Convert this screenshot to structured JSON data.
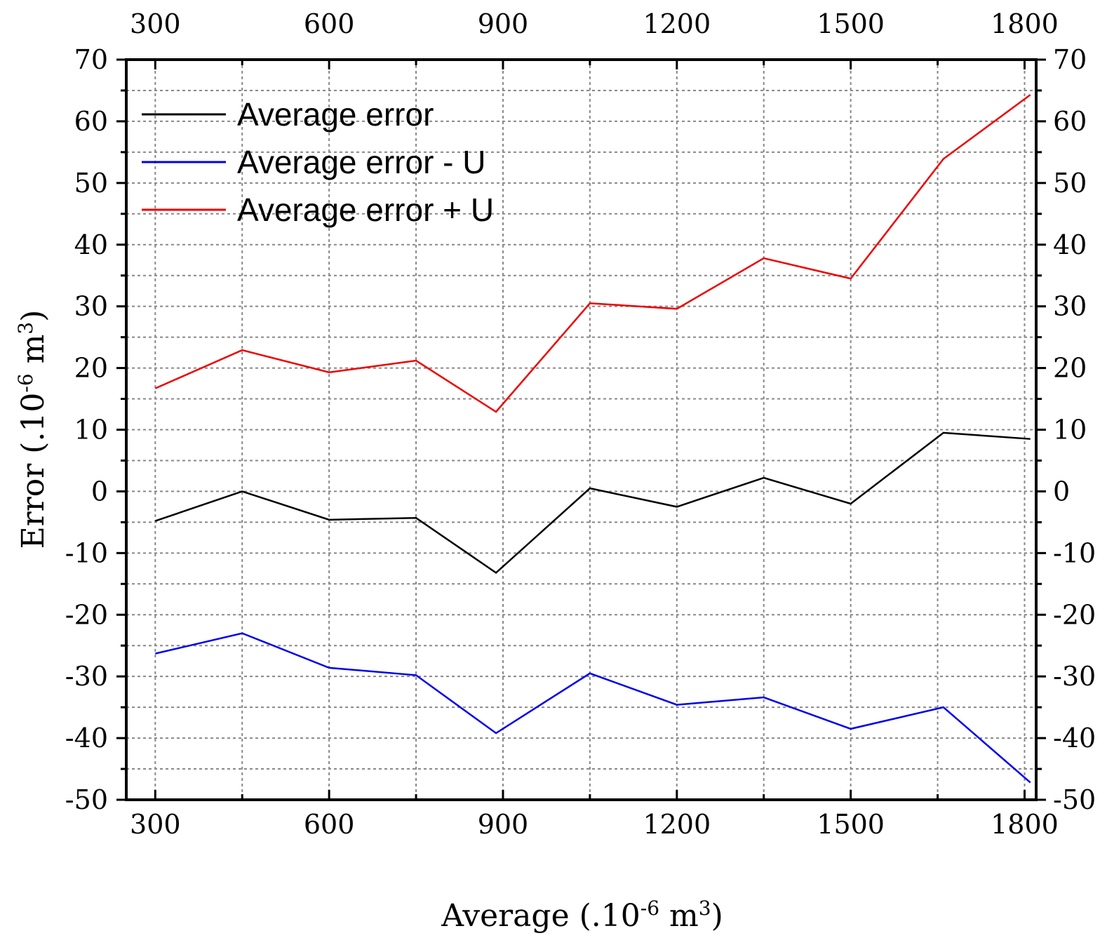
{
  "chart_data": {
    "type": "line",
    "xlabel": "Average (.10-6 m3)",
    "xlabel_parts": {
      "base": "Average (.10",
      "exp1": "-6",
      "mid": " m",
      "exp2": "3",
      "end": ")"
    },
    "ylabel": "Error (.10-6 m3)",
    "ylabel_parts": {
      "base": "Error (.10",
      "exp1": "-6",
      "mid": " m",
      "exp2": "3",
      "end": ")"
    },
    "xlim": [
      250,
      1820
    ],
    "ylim": [
      -50,
      70
    ],
    "x_ticks": [
      300,
      600,
      900,
      1200,
      1500,
      1800
    ],
    "y_ticks": [
      -50,
      -40,
      -30,
      -20,
      -10,
      0,
      10,
      20,
      30,
      40,
      50,
      60,
      70
    ],
    "grid": true,
    "legend_position": "top-left",
    "x": [
      300,
      450,
      600,
      750,
      888,
      1050,
      1200,
      1350,
      1500,
      1660,
      1810
    ],
    "series": [
      {
        "name": "Average error",
        "color": "#000000",
        "values": [
          -4.8,
          0.0,
          -4.6,
          -4.3,
          -13.2,
          0.5,
          -2.5,
          2.2,
          -2.0,
          9.5,
          8.5
        ]
      },
      {
        "name": "Average error - U",
        "color": "#0000ee",
        "values": [
          -26.3,
          -23.0,
          -28.6,
          -29.8,
          -39.2,
          -29.5,
          -34.6,
          -33.4,
          -38.5,
          -35.0,
          -47.2
        ]
      },
      {
        "name": "Average error + U",
        "color": "#ee0000",
        "values": [
          16.7,
          22.9,
          19.3,
          21.2,
          12.9,
          30.5,
          29.6,
          37.8,
          34.5,
          53.9,
          64.3
        ]
      }
    ]
  }
}
